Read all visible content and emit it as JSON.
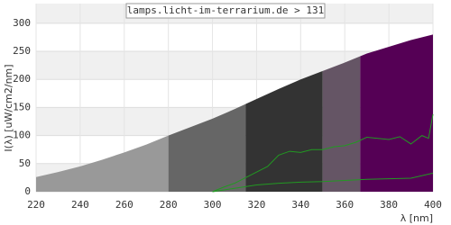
{
  "chart_data": {
    "type": "area",
    "title": "lamps.licht-im-terrarium.de > 131",
    "x_label": "λ [nm]",
    "y_label": "I(λ) [uW/cm2/nm]",
    "xlim": [
      220,
      400
    ],
    "xticks": [
      220,
      240,
      260,
      280,
      300,
      320,
      340,
      360,
      380,
      400
    ],
    "ylim": [
      0,
      335
    ],
    "yticks": [
      0,
      50,
      100,
      150,
      200,
      250,
      300
    ],
    "grid": true,
    "x": [
      220,
      230,
      240,
      250,
      260,
      270,
      280,
      290,
      300,
      310,
      320,
      330,
      340,
      350,
      360,
      370,
      380,
      390,
      400
    ],
    "values": [
      26,
      35,
      45,
      57,
      70,
      84,
      100,
      115,
      130,
      147,
      165,
      183,
      200,
      215,
      230,
      246,
      258,
      270,
      280
    ],
    "bands": [
      {
        "from": 220,
        "to": 280,
        "color": "#999999"
      },
      {
        "from": 280,
        "to": 315,
        "color": "#666666"
      },
      {
        "from": 315,
        "to": 350,
        "color": "#333333"
      },
      {
        "from": 350,
        "to": 367,
        "color": "#655565"
      },
      {
        "from": 367,
        "to": 400,
        "color": "#550055"
      }
    ],
    "lines": [
      {
        "color": "#229922",
        "x": [
          300,
          305,
          310,
          315,
          320,
          325,
          330,
          335,
          340,
          345,
          350,
          355,
          360,
          365,
          370,
          375,
          380,
          385,
          390,
          395,
          398,
          400
        ],
        "values": [
          0,
          8,
          15,
          25,
          35,
          45,
          65,
          72,
          70,
          75,
          75,
          80,
          82,
          88,
          97,
          95,
          93,
          98,
          85,
          100,
          95,
          138
        ]
      },
      {
        "color": "#229922",
        "x": [
          300,
          310,
          320,
          330,
          340,
          350,
          360,
          370,
          380,
          390,
          400
        ],
        "values": [
          0,
          6,
          12,
          15,
          17,
          18,
          20,
          22,
          23,
          24,
          33
        ]
      }
    ]
  }
}
